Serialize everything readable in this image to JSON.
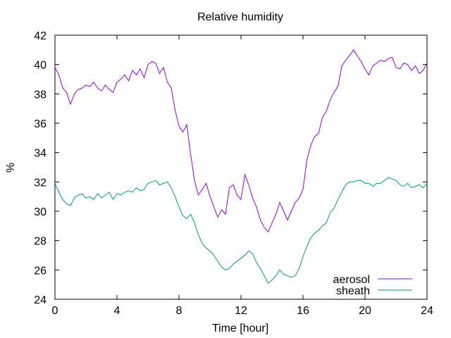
{
  "chart_data": {
    "type": "line",
    "title": "Relative humidity",
    "xlabel": "Time [hour]",
    "ylabel": "%",
    "xlim": [
      0,
      24
    ],
    "ylim": [
      24,
      42
    ],
    "xticks": [
      0,
      4,
      8,
      12,
      16,
      20,
      24
    ],
    "yticks": [
      24,
      26,
      28,
      30,
      32,
      34,
      36,
      38,
      40,
      42
    ],
    "grid": false,
    "legend_position": "bottom-right",
    "series": [
      {
        "name": "aerosol",
        "color": "#9400d3",
        "x": [
          0,
          0.25,
          0.5,
          0.75,
          1,
          1.25,
          1.5,
          1.75,
          2,
          2.25,
          2.5,
          2.75,
          3,
          3.25,
          3.5,
          3.75,
          4,
          4.25,
          4.5,
          4.75,
          5,
          5.25,
          5.5,
          5.75,
          6,
          6.25,
          6.5,
          6.75,
          7,
          7.25,
          7.5,
          7.75,
          8,
          8.25,
          8.5,
          8.75,
          9,
          9.25,
          9.5,
          9.75,
          10,
          10.25,
          10.5,
          10.75,
          11,
          11.25,
          11.5,
          11.75,
          12,
          12.25,
          12.5,
          12.75,
          13,
          13.25,
          13.5,
          13.75,
          14,
          14.25,
          14.5,
          14.75,
          15,
          15.25,
          15.5,
          15.75,
          16,
          16.25,
          16.5,
          16.75,
          17,
          17.25,
          17.5,
          17.75,
          18,
          18.25,
          18.5,
          18.75,
          19,
          19.25,
          19.5,
          19.75,
          20,
          20.25,
          20.5,
          20.75,
          21,
          21.25,
          21.5,
          21.75,
          22,
          22.25,
          22.5,
          22.75,
          23,
          23.25,
          23.5,
          23.75,
          24
        ],
        "values": [
          39.8,
          39.3,
          38.4,
          38.1,
          37.3,
          38.0,
          38.3,
          38.4,
          38.6,
          38.5,
          38.8,
          38.4,
          38.2,
          38.6,
          38.3,
          38.1,
          38.8,
          39.0,
          39.3,
          38.9,
          39.6,
          39.3,
          39.7,
          39.1,
          40.0,
          40.2,
          40.1,
          39.4,
          39.8,
          38.8,
          38.4,
          36.9,
          35.8,
          35.4,
          35.9,
          33.9,
          32.1,
          31.1,
          31.5,
          31.9,
          31.0,
          30.3,
          29.6,
          30.1,
          29.8,
          31.6,
          31.8,
          31.1,
          30.8,
          32.5,
          31.8,
          30.9,
          30.3,
          29.4,
          28.9,
          28.6,
          29.2,
          29.8,
          30.6,
          30.0,
          29.4,
          30.0,
          30.6,
          30.9,
          31.5,
          33.5,
          34.5,
          35.1,
          35.3,
          36.4,
          36.8,
          37.6,
          38.1,
          38.5,
          39.9,
          40.3,
          40.6,
          41.0,
          40.6,
          40.2,
          39.7,
          39.3,
          39.9,
          40.1,
          40.3,
          40.2,
          40.4,
          40.5,
          39.8,
          39.7,
          40.1,
          40.0,
          39.6,
          39.9,
          39.4,
          39.6,
          40.1
        ]
      },
      {
        "name": "sheath",
        "color": "#009e73",
        "x": [
          0,
          0.25,
          0.5,
          0.75,
          1,
          1.25,
          1.5,
          1.75,
          2,
          2.25,
          2.5,
          2.75,
          3,
          3.25,
          3.5,
          3.75,
          4,
          4.25,
          4.5,
          4.75,
          5,
          5.25,
          5.5,
          5.75,
          6,
          6.25,
          6.5,
          6.75,
          7,
          7.25,
          7.5,
          7.75,
          8,
          8.25,
          8.5,
          8.75,
          9,
          9.25,
          9.5,
          9.75,
          10,
          10.25,
          10.5,
          10.75,
          11,
          11.25,
          11.5,
          11.75,
          12,
          12.25,
          12.5,
          12.75,
          13,
          13.25,
          13.5,
          13.75,
          14,
          14.25,
          14.5,
          14.75,
          15,
          15.25,
          15.5,
          15.75,
          16,
          16.25,
          16.5,
          16.75,
          17,
          17.25,
          17.5,
          17.75,
          18,
          18.25,
          18.5,
          18.75,
          19,
          19.25,
          19.5,
          19.75,
          20,
          20.25,
          20.5,
          20.75,
          21,
          21.25,
          21.5,
          21.75,
          22,
          22.25,
          22.5,
          22.75,
          23,
          23.25,
          23.5,
          23.75,
          24
        ],
        "values": [
          31.9,
          31.3,
          30.8,
          30.5,
          30.4,
          30.9,
          31.1,
          31.2,
          30.9,
          31.0,
          30.8,
          31.2,
          30.9,
          31.1,
          31.3,
          30.8,
          31.2,
          31.1,
          31.3,
          31.4,
          31.3,
          31.6,
          31.4,
          31.5,
          31.9,
          32.0,
          32.1,
          31.8,
          31.9,
          32.0,
          31.6,
          31.0,
          30.3,
          29.7,
          29.5,
          29.8,
          29.2,
          28.4,
          27.8,
          27.5,
          27.3,
          27.0,
          26.6,
          26.2,
          26.0,
          26.1,
          26.4,
          26.6,
          26.8,
          27.0,
          27.3,
          27.1,
          26.5,
          26.1,
          25.6,
          25.1,
          25.3,
          25.6,
          26.0,
          25.7,
          25.6,
          25.5,
          25.6,
          26.1,
          26.9,
          27.6,
          28.2,
          28.5,
          28.7,
          29.0,
          29.2,
          29.9,
          30.2,
          30.8,
          31.3,
          31.8,
          32.0,
          32.0,
          32.1,
          32.1,
          31.9,
          31.9,
          31.7,
          31.9,
          31.9,
          32.1,
          32.3,
          32.2,
          32.1,
          31.8,
          31.7,
          31.9,
          31.6,
          31.7,
          31.8,
          31.6,
          31.9
        ]
      }
    ]
  }
}
